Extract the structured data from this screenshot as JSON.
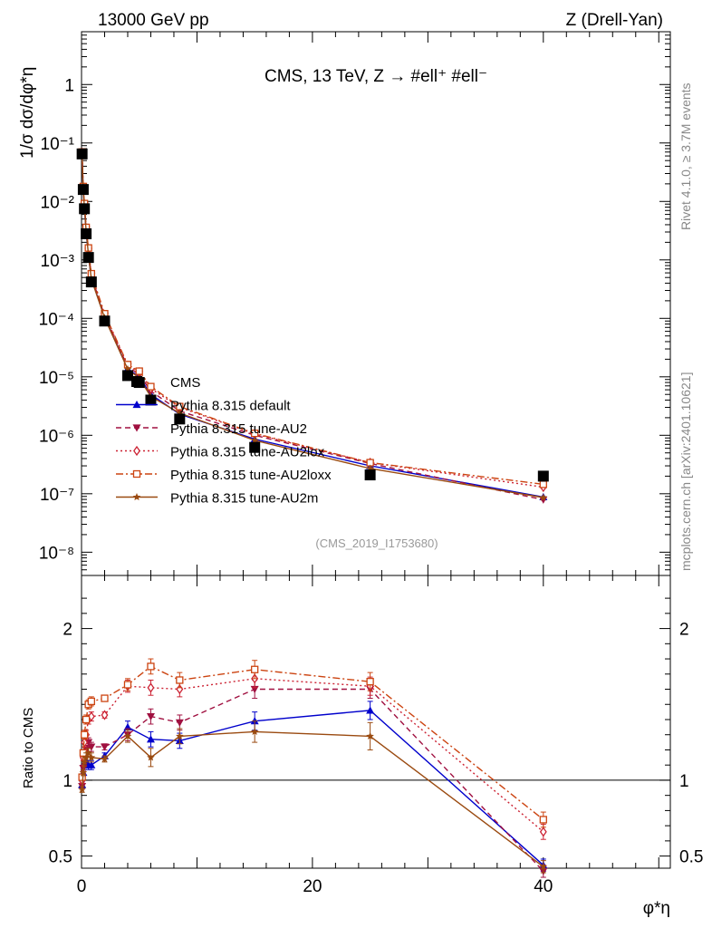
{
  "header": {
    "left": "13000 GeV pp",
    "right": "Z (Drell-Yan)",
    "plot_title": "CMS, 13 TeV, Z →  #ell⁺ #ell⁻"
  },
  "side_labels": {
    "rivet": "Rivet 4.1.0, ≥ 3.7M events",
    "mcplots": "mcplots.cern.ch [arXiv:2401.10621]"
  },
  "analysis_tag": "(CMS_2019_I1753680)",
  "chart_data": [
    {
      "type": "line",
      "panel": "main",
      "ylabel": "1/σ dσ/dφ*η",
      "xlabel": "φ*η",
      "xlim": [
        0,
        51
      ],
      "ylim": [
        4e-09,
        8
      ],
      "yscale": "log",
      "y_ticks": [
        {
          "value": 1e-08,
          "label": "10⁻⁸"
        },
        {
          "value": 1e-07,
          "label": "10⁻⁷"
        },
        {
          "value": 1e-06,
          "label": "10⁻⁶"
        },
        {
          "value": 1e-05,
          "label": "10⁻⁵"
        },
        {
          "value": 0.0001,
          "label": "10⁻⁴"
        },
        {
          "value": 0.001,
          "label": "10⁻³"
        },
        {
          "value": 0.01,
          "label": "10⁻²"
        },
        {
          "value": 0.1,
          "label": "10⁻¹"
        },
        {
          "value": 1,
          "label": "1"
        }
      ],
      "x": [
        0.05,
        0.15,
        0.25,
        0.4,
        0.6,
        0.85,
        2.0,
        4.0,
        5.0,
        6.0,
        8.5,
        15.0,
        25.0,
        40.0
      ],
      "series": [
        {
          "name": "CMS",
          "color": "#000000",
          "marker": "square",
          "style": "none",
          "values": [
            0.065,
            0.016,
            0.0075,
            0.0028,
            0.0011,
            0.00042,
            9e-05,
            1.05e-05,
            8e-06,
            4e-06,
            1.9e-06,
            6.2e-07,
            2.1e-07,
            2e-07
          ]
        },
        {
          "name": "Pythia 8.315 default",
          "color": "#0000cc",
          "marker": "triangle-up",
          "style": "solid",
          "values": [
            0.062,
            0.015,
            0.008,
            0.003,
            0.0012,
            0.00048,
            0.000105,
            1.38e-05,
            1e-05,
            5e-06,
            2.3e-06,
            8.6e-07,
            3e-07,
            8.8e-08
          ]
        },
        {
          "name": "Pythia 8.315 tune-AU2",
          "color": "#a01040",
          "marker": "triangle-down",
          "style": "dashed",
          "values": [
            0.066,
            0.017,
            0.0085,
            0.0033,
            0.0014,
            0.00053,
            0.00011,
            1.48e-05,
            1.1e-05,
            5.7e-06,
            2.6e-06,
            1e-06,
            3.3e-07,
            7.9e-08
          ]
        },
        {
          "name": "Pythia 8.315 tune-AU2lox",
          "color": "#cc2233",
          "marker": "diamond-open",
          "style": "dotted",
          "values": [
            0.068,
            0.0175,
            0.009,
            0.0035,
            0.0015,
            0.00056,
            0.000115,
            1.56e-05,
            1.2e-05,
            6.3e-06,
            3e-06,
            1.05e-06,
            3.4e-07,
            1.3e-07
          ]
        },
        {
          "name": "Pythia 8.315 tune-AU2loxx",
          "color": "#cc4411",
          "marker": "square-open",
          "style": "dashdot",
          "values": [
            0.07,
            0.018,
            0.0092,
            0.0036,
            0.0016,
            0.00058,
            0.00012,
            1.62e-05,
            1.25e-05,
            6.8e-06,
            3.1e-06,
            1.08e-06,
            3.4e-07,
            1.45e-07
          ]
        },
        {
          "name": "Pythia 8.315 tune-AU2m",
          "color": "#9a4a10",
          "marker": "star",
          "style": "solid",
          "values": [
            0.061,
            0.0152,
            0.0079,
            0.0031,
            0.00125,
            0.00047,
            0.000102,
            1.35e-05,
            9.5e-06,
            4.6e-06,
            2.4e-06,
            8.2e-07,
            2.7e-07,
            8.6e-08
          ]
        }
      ]
    },
    {
      "type": "line",
      "panel": "ratio",
      "ylabel": "Ratio to CMS",
      "xlabel": "φ*η",
      "xlim": [
        0,
        51
      ],
      "ylim": [
        0.42,
        2.35
      ],
      "x_ticks": [
        0,
        20,
        40
      ],
      "y_ticks": [
        {
          "value": 0.5,
          "label": "0.5"
        },
        {
          "value": 1,
          "label": "1"
        },
        {
          "value": 2,
          "label": "2"
        }
      ],
      "x": [
        0.05,
        0.15,
        0.25,
        0.4,
        0.6,
        0.85,
        2.0,
        4.0,
        6.0,
        8.5,
        15.0,
        25.0,
        40.0
      ],
      "series": [
        {
          "name": "Pythia 8.315 default",
          "color": "#0000cc",
          "marker": "triangle-up",
          "style": "solid",
          "values": [
            0.97,
            1.05,
            1.1,
            1.12,
            1.1,
            1.1,
            1.16,
            1.35,
            1.27,
            1.26,
            1.39,
            1.46,
            0.44
          ],
          "errors": [
            0.02,
            0.02,
            0.03,
            0.03,
            0.03,
            0.03,
            0.02,
            0.04,
            0.05,
            0.05,
            0.06,
            0.06,
            0.04
          ]
        },
        {
          "name": "Pythia 8.315 tune-AU2",
          "color": "#a01040",
          "marker": "triangle-down",
          "style": "dashed",
          "values": [
            0.96,
            1.08,
            1.14,
            1.2,
            1.25,
            1.22,
            1.22,
            1.3,
            1.42,
            1.38,
            1.6,
            1.6,
            0.4
          ],
          "errors": [
            0.02,
            0.02,
            0.03,
            0.03,
            0.03,
            0.03,
            0.02,
            0.04,
            0.05,
            0.05,
            0.06,
            0.06,
            0.04
          ]
        },
        {
          "name": "Pythia 8.315 tune-AU2lox",
          "color": "#cc2233",
          "marker": "diamond-open",
          "style": "dotted",
          "values": [
            1.0,
            1.15,
            1.25,
            1.3,
            1.4,
            1.42,
            1.43,
            1.62,
            1.61,
            1.6,
            1.67,
            1.62,
            0.66
          ],
          "errors": [
            0.02,
            0.02,
            0.03,
            0.03,
            0.03,
            0.03,
            0.02,
            0.04,
            0.05,
            0.05,
            0.06,
            0.06,
            0.05
          ]
        },
        {
          "name": "Pythia 8.315 tune-AU2loxx",
          "color": "#cc4411",
          "marker": "square-open",
          "style": "dashdot",
          "values": [
            1.02,
            1.18,
            1.3,
            1.4,
            1.5,
            1.52,
            1.54,
            1.63,
            1.75,
            1.66,
            1.73,
            1.65,
            0.74
          ],
          "errors": [
            0.02,
            0.02,
            0.03,
            0.03,
            0.03,
            0.03,
            0.02,
            0.04,
            0.05,
            0.05,
            0.06,
            0.06,
            0.05
          ]
        },
        {
          "name": "Pythia 8.315 tune-AU2m",
          "color": "#9a4a10",
          "marker": "star",
          "style": "solid",
          "values": [
            0.94,
            1.05,
            1.12,
            1.15,
            1.18,
            1.15,
            1.14,
            1.29,
            1.15,
            1.29,
            1.32,
            1.29,
            0.43
          ],
          "errors": [
            0.02,
            0.02,
            0.03,
            0.03,
            0.03,
            0.03,
            0.02,
            0.04,
            0.06,
            0.05,
            0.07,
            0.09,
            0.04
          ]
        }
      ]
    }
  ],
  "legend": {
    "placement": "lower-left",
    "entries": [
      "CMS",
      "Pythia 8.315 default",
      "Pythia 8.315 tune-AU2",
      "Pythia 8.315 tune-AU2lox",
      "Pythia 8.315 tune-AU2loxx",
      "Pythia 8.315 tune-AU2m"
    ]
  }
}
